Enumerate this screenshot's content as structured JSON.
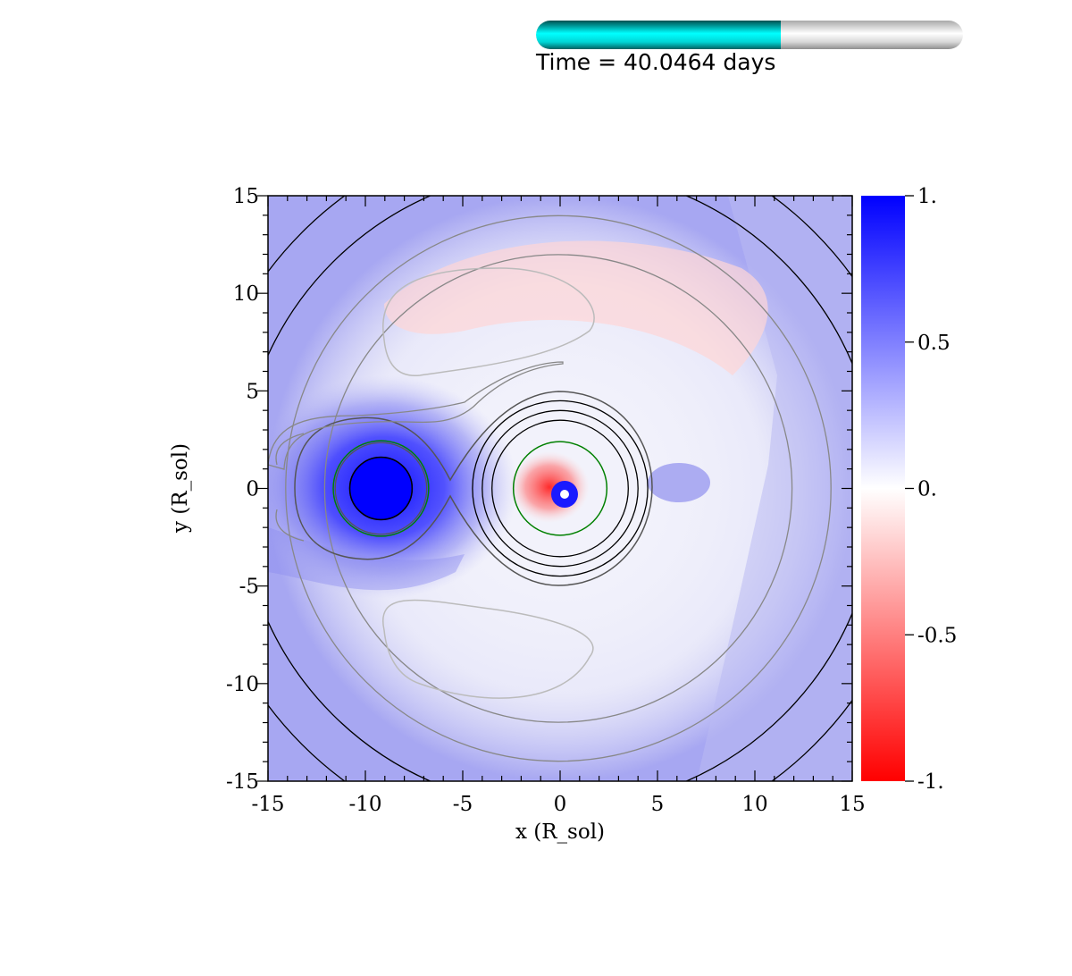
{
  "header": {
    "time_label": "Time =",
    "time_value": "40.0464",
    "time_unit": "days",
    "progress_fraction": 0.573,
    "fill_color": "#00ffff",
    "track_color": "#d9d9d9"
  },
  "chart_data": {
    "type": "heatmap",
    "title": "",
    "xlabel": "x (R_sol)",
    "ylabel": "y (R_sol)",
    "xlim": [
      -15,
      15
    ],
    "ylim": [
      -15,
      15
    ],
    "x_ticks": [
      "-15",
      "-10",
      "-5",
      "0",
      "5",
      "10",
      "15"
    ],
    "y_ticks": [
      "-15",
      "-10",
      "-5",
      "0",
      "5",
      "10",
      "15"
    ],
    "colorbar": {
      "range": [
        -1,
        1
      ],
      "ticks": [
        "-1.",
        "-0.5",
        "0.",
        "0.5",
        "1."
      ],
      "tick_values": [
        -1,
        -0.5,
        0,
        0.5,
        1
      ],
      "low_color": "#ff0000",
      "mid_color": "#ffffff",
      "high_color": "#0000ff"
    },
    "bodies": [
      {
        "x": -9.2,
        "y": 0.0,
        "radius": 1.6,
        "value": 1.0
      },
      {
        "x": 0.0,
        "y": 0.0,
        "radius": 2.4,
        "value": 0.0
      }
    ],
    "roche_lobe_color": "#008000",
    "contour_colors": [
      "#000000",
      "#555555",
      "#888888",
      "#bbbbbb"
    ]
  }
}
